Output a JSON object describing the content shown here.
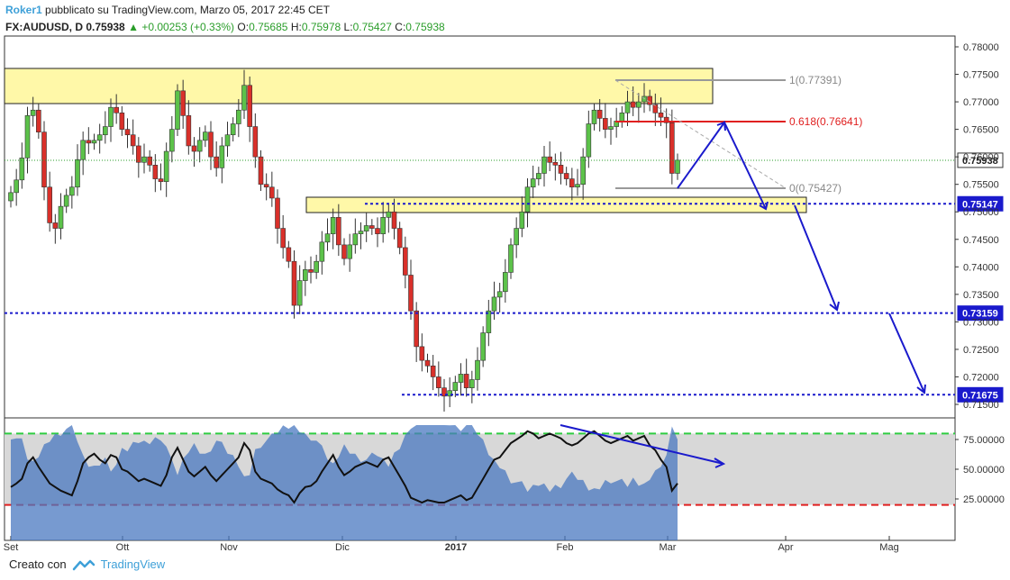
{
  "header": {
    "user": "Roker1",
    "published": "pubblicato su TradingView.com, Marzo 05, 2017 22:45 CET",
    "symbol": "FX:AUDUSD, D",
    "last": "0.75938",
    "change": "+0.00253 (+0.33%)",
    "o_label": "O:",
    "o": "0.75685",
    "h_label": "H:",
    "h": "0.75978",
    "l_label": "L:",
    "l": "0.75427",
    "c_label": "C:",
    "c": "0.75938"
  },
  "footer": {
    "created_with": "Creato con",
    "brand": "TradingView"
  },
  "colors": {
    "bull": "#5cc24a",
    "bear": "#d9302a",
    "zone": "#fff8a8",
    "level": "#1a1acc",
    "fib": "#888888",
    "fib618": "#e02020",
    "rsi_area": "#4a78c0",
    "accent": "#3ea0d8"
  },
  "chart_data": [
    {
      "type": "candlestick",
      "title": "FX:AUDUSD, D",
      "x_tick_labels": [
        "Set",
        "Ott",
        "Nov",
        "Dic",
        "2017",
        "Feb",
        "Mar",
        "Apr",
        "Mag"
      ],
      "y_tick_labels": [
        "0.78000",
        "0.77500",
        "0.77000",
        "0.76500",
        "0.76000",
        "0.75500",
        "0.75000",
        "0.74500",
        "0.74000",
        "0.73500",
        "0.73000",
        "0.72500",
        "0.72000",
        "0.71500"
      ],
      "ylim": [
        0.7135,
        0.7815
      ],
      "grid": false,
      "closes_approx": [
        0.7535,
        0.7558,
        0.7598,
        0.7675,
        0.7685,
        0.7645,
        0.7545,
        0.748,
        0.747,
        0.751,
        0.753,
        0.7545,
        0.7595,
        0.763,
        0.7625,
        0.763,
        0.764,
        0.7655,
        0.769,
        0.768,
        0.765,
        0.764,
        0.762,
        0.759,
        0.76,
        0.7585,
        0.756,
        0.7555,
        0.761,
        0.765,
        0.772,
        0.7675,
        0.762,
        0.761,
        0.763,
        0.7645,
        0.76,
        0.758,
        0.762,
        0.764,
        0.766,
        0.7685,
        0.773,
        0.7655,
        0.76,
        0.755,
        0.7545,
        0.7525,
        0.747,
        0.7435,
        0.741,
        0.733,
        0.7375,
        0.7395,
        0.739,
        0.741,
        0.7445,
        0.746,
        0.749,
        0.744,
        0.7415,
        0.744,
        0.746,
        0.7465,
        0.7475,
        0.747,
        0.746,
        0.749,
        0.75,
        0.747,
        0.7435,
        0.7385,
        0.732,
        0.7255,
        0.723,
        0.722,
        0.72,
        0.718,
        0.7165,
        0.7175,
        0.719,
        0.7205,
        0.718,
        0.7195,
        0.723,
        0.728,
        0.732,
        0.7345,
        0.7355,
        0.739,
        0.744,
        0.747,
        0.75,
        0.7545,
        0.756,
        0.757,
        0.76,
        0.759,
        0.7585,
        0.757,
        0.756,
        0.7545,
        0.755,
        0.76,
        0.766,
        0.7685,
        0.767,
        0.765,
        0.7655,
        0.7665,
        0.768,
        0.77,
        0.769,
        0.77,
        0.771,
        0.7695,
        0.768,
        0.7672,
        0.7662,
        0.757,
        0.7594
      ],
      "annotations": [
        "1(0.77391)",
        "0.618(0.76641)",
        "0(0.75427)"
      ],
      "price_labels": [
        "0.75938",
        "0.75147",
        "0.73159",
        "0.71675"
      ]
    },
    {
      "type": "line",
      "series": [
        {
          "values": [
            35,
            38,
            42,
            55,
            60,
            52,
            45,
            38,
            35,
            32,
            30,
            28,
            40,
            55,
            60,
            63,
            58,
            55,
            62,
            60,
            50,
            48,
            44,
            40,
            42,
            40,
            38,
            36,
            45,
            60,
            68,
            58,
            48,
            44,
            48,
            52,
            45,
            40,
            45,
            50,
            55,
            60,
            72,
            66,
            48,
            42,
            40,
            38,
            33,
            30,
            28,
            22,
            30,
            35,
            36,
            40,
            48,
            55,
            62,
            52,
            45,
            48,
            52,
            54,
            56,
            54,
            52,
            58,
            60,
            52,
            44,
            36,
            26,
            24,
            22,
            24,
            23,
            22,
            22,
            24,
            26,
            28,
            24,
            26,
            34,
            42,
            50,
            58,
            60,
            66,
            72,
            75,
            78,
            82,
            80,
            76,
            78,
            80,
            78,
            76,
            72,
            70,
            72,
            76,
            80,
            82,
            78,
            74,
            72,
            74,
            76,
            78,
            74,
            76,
            78,
            70,
            66,
            58,
            52,
            32,
            38
          ]
        }
      ],
      "y_tick_labels": [
        "75.00000",
        "50.00000",
        "25.00000"
      ],
      "ylim": [
        10,
        90
      ]
    }
  ]
}
